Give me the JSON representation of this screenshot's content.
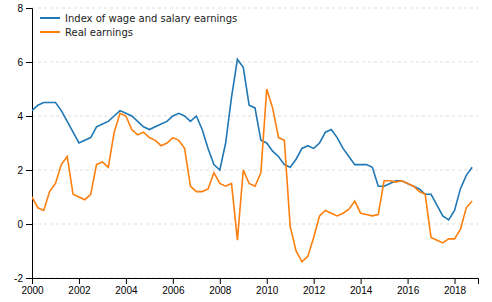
{
  "chart_data": {
    "type": "line",
    "x": [
      2000,
      2000.25,
      2000.5,
      2000.75,
      2001,
      2001.25,
      2001.5,
      2001.75,
      2002,
      2002.25,
      2002.5,
      2002.75,
      2003,
      2003.25,
      2003.5,
      2003.75,
      2004,
      2004.25,
      2004.5,
      2004.75,
      2005,
      2005.25,
      2005.5,
      2005.75,
      2006,
      2006.25,
      2006.5,
      2006.75,
      2007,
      2007.25,
      2007.5,
      2007.75,
      2008,
      2008.25,
      2008.5,
      2008.75,
      2009,
      2009.25,
      2009.5,
      2009.75,
      2010,
      2010.25,
      2010.5,
      2010.75,
      2011,
      2011.25,
      2011.5,
      2011.75,
      2012,
      2012.25,
      2012.5,
      2012.75,
      2013,
      2013.25,
      2013.5,
      2013.75,
      2014,
      2014.25,
      2014.5,
      2014.75,
      2015,
      2015.25,
      2015.5,
      2015.75,
      2016,
      2016.25,
      2016.5,
      2016.75,
      2017,
      2017.25,
      2017.5,
      2017.75,
      2018,
      2018.25,
      2018.5,
      2018.75
    ],
    "series": [
      {
        "name": "Index of wage and salary earnings",
        "values": [
          4.2,
          4.4,
          4.5,
          4.5,
          4.5,
          4.2,
          3.8,
          3.4,
          3.0,
          3.1,
          3.2,
          3.6,
          3.7,
          3.8,
          4.0,
          4.2,
          4.1,
          4.0,
          3.8,
          3.6,
          3.5,
          3.6,
          3.7,
          3.8,
          4.0,
          4.1,
          4.0,
          3.8,
          4.0,
          3.5,
          2.8,
          2.2,
          2.0,
          3.0,
          4.7,
          6.1,
          5.8,
          4.4,
          4.3,
          3.1,
          3.0,
          2.7,
          2.5,
          2.2,
          2.1,
          2.4,
          2.8,
          2.9,
          2.8,
          3.0,
          3.4,
          3.5,
          3.2,
          2.8,
          2.5,
          2.2,
          2.2,
          2.2,
          2.1,
          1.4,
          1.4,
          1.5,
          1.6,
          1.6,
          1.5,
          1.4,
          1.3,
          1.1,
          1.1,
          0.7,
          0.3,
          0.15,
          0.5,
          1.3,
          1.8,
          2.1
        ]
      },
      {
        "name": "Real earnings",
        "values": [
          1.0,
          0.6,
          0.5,
          1.2,
          1.5,
          2.2,
          2.5,
          1.1,
          1.0,
          0.9,
          1.1,
          2.2,
          2.3,
          2.1,
          3.4,
          4.1,
          4.0,
          3.5,
          3.3,
          3.4,
          3.2,
          3.1,
          2.9,
          3.0,
          3.2,
          3.1,
          2.8,
          1.4,
          1.2,
          1.2,
          1.3,
          1.9,
          1.5,
          1.4,
          1.5,
          -0.6,
          2.0,
          1.5,
          1.4,
          1.9,
          5.0,
          4.3,
          3.2,
          3.1,
          -0.1,
          -1.0,
          -1.4,
          -1.2,
          -0.5,
          0.3,
          0.5,
          0.4,
          0.3,
          0.4,
          0.55,
          0.85,
          0.4,
          0.35,
          0.3,
          0.35,
          1.6,
          1.6,
          1.55,
          1.6,
          1.5,
          1.4,
          1.2,
          1.1,
          -0.5,
          -0.6,
          -0.7,
          -0.55,
          -0.55,
          -0.2,
          0.6,
          0.85
        ]
      }
    ],
    "xlim": [
      2000,
      2019.0
    ],
    "xticks": [
      2000,
      2002,
      2004,
      2006,
      2008,
      2010,
      2012,
      2014,
      2016,
      2018
    ],
    "ylim": [
      -2,
      8
    ],
    "yticks": [
      -2,
      0,
      2,
      4,
      6,
      8
    ],
    "grid": "y",
    "legend": "upper-left"
  }
}
